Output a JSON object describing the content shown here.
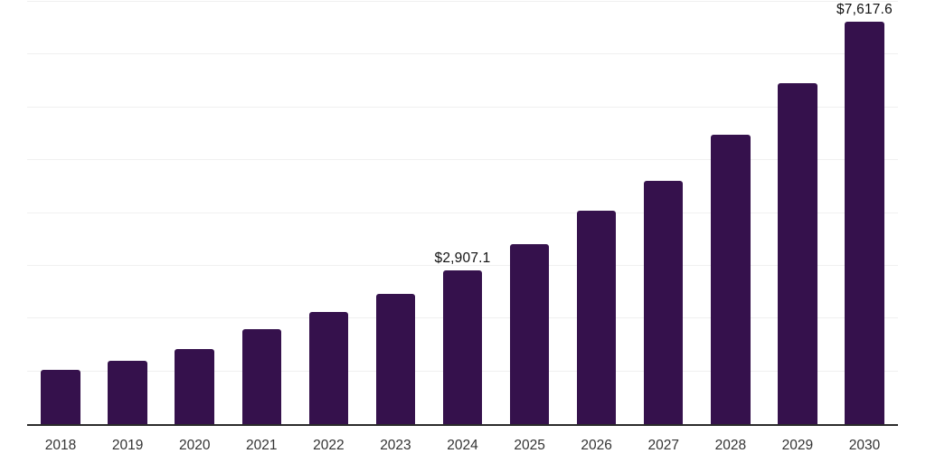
{
  "chart_data": {
    "type": "bar",
    "title": "",
    "xlabel": "",
    "ylabel": "",
    "categories": [
      "2018",
      "2019",
      "2020",
      "2021",
      "2022",
      "2023",
      "2024",
      "2025",
      "2026",
      "2027",
      "2028",
      "2029",
      "2030"
    ],
    "values": [
      1025,
      1200,
      1430,
      1800,
      2125,
      2470,
      2907.1,
      3410,
      4050,
      4600,
      5475,
      6455,
      7617.6
    ],
    "value_labels": {
      "2024": "$2,907.1",
      "2030": "$7,617.6"
    },
    "ylim": [
      0,
      8000
    ],
    "grid": {
      "horizontal": true,
      "interval": 1000
    },
    "legend": "none",
    "colors": {
      "bar": "#35114c",
      "gridline": "#f0f0f0",
      "axis_line": "#2b2b2b",
      "tick_label": "#333333",
      "value_label": "#111111"
    }
  }
}
